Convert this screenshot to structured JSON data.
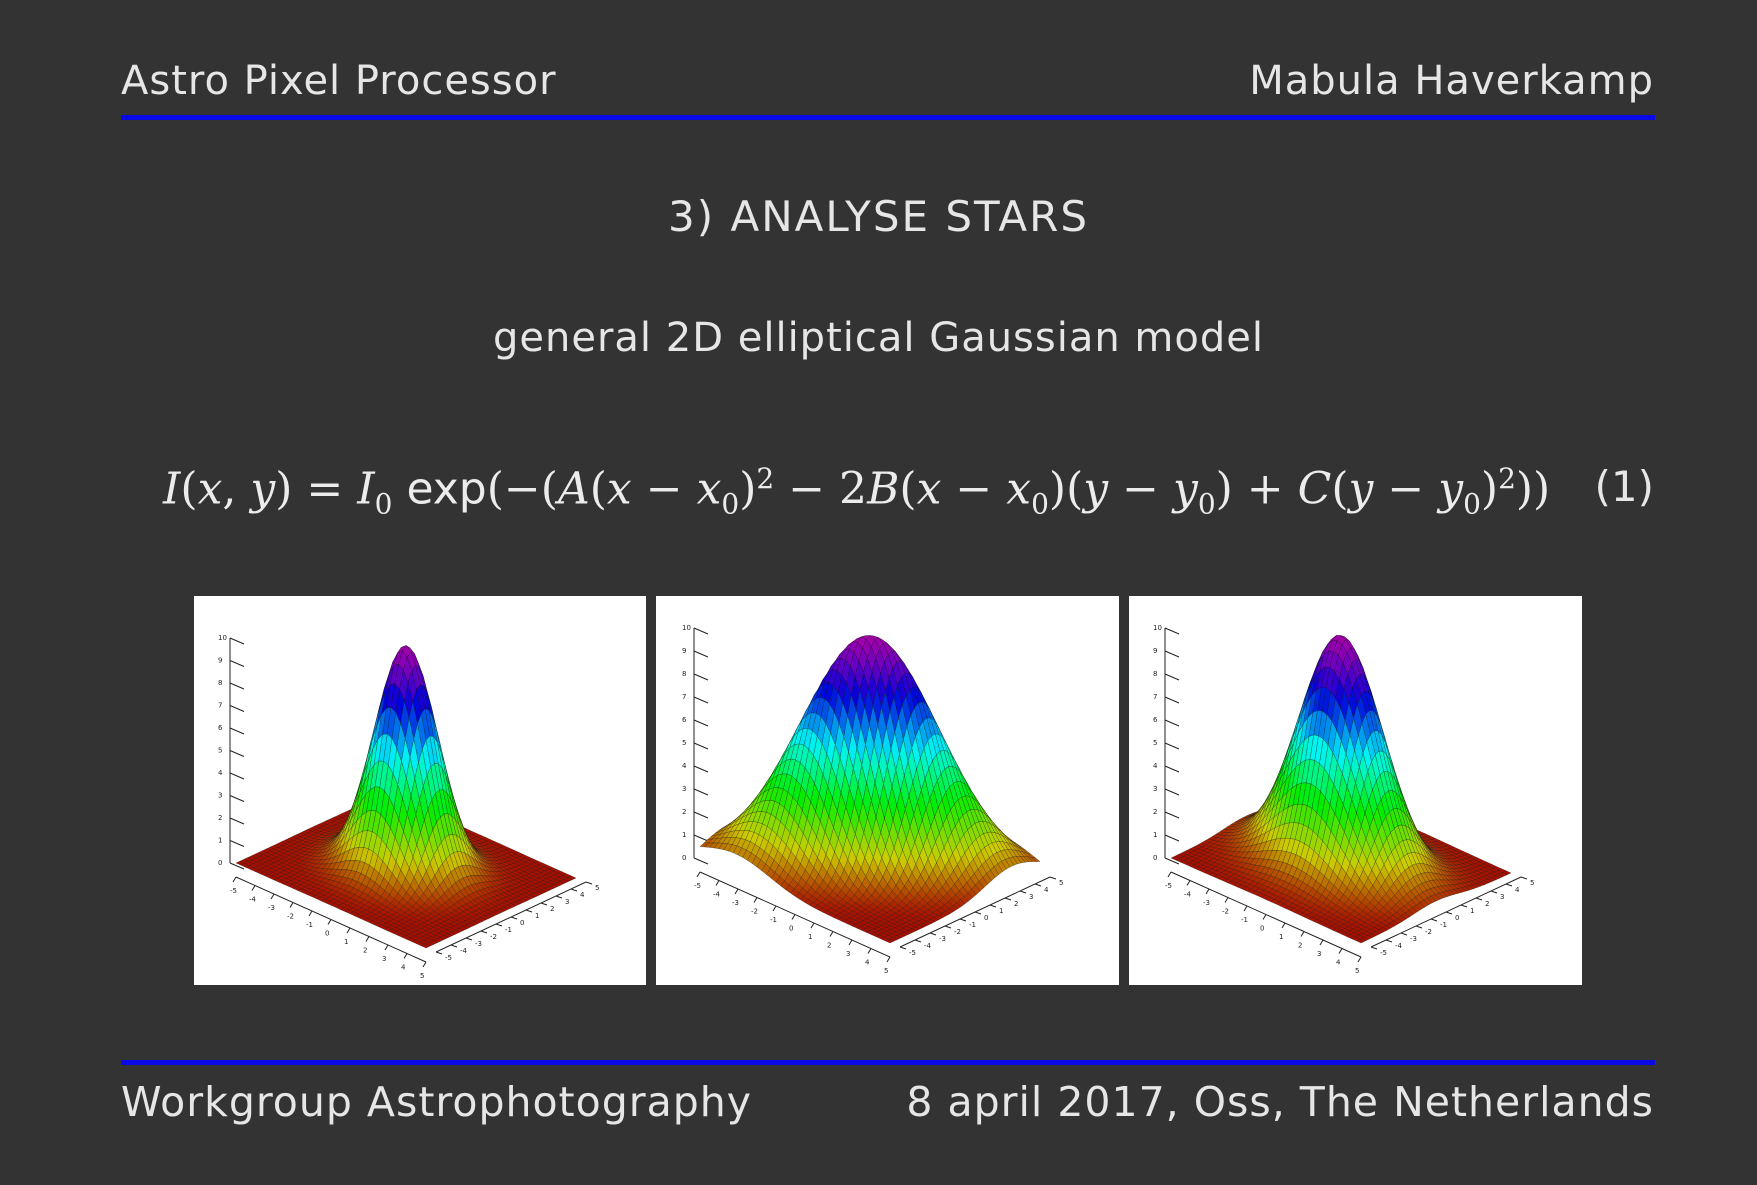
{
  "header": {
    "left": "Astro Pixel Processor",
    "right": "Mabula Haverkamp"
  },
  "slide": {
    "title": "3) ANALYSE STARS",
    "subtitle": "general 2D elliptical Gaussian model",
    "equation_number": "(1)"
  },
  "footer": {
    "left": "Workgroup Astrophotography",
    "right": "8 april 2017, Oss, The Netherlands"
  },
  "plots": {
    "z_ticks": [
      "10",
      "9",
      "8",
      "7",
      "6",
      "5",
      "4",
      "3",
      "2",
      "1",
      "0"
    ],
    "axis_ticks": [
      "-5",
      "-4",
      "-3",
      "-2",
      "-1",
      "0",
      "1",
      "2",
      "3",
      "4",
      "5"
    ]
  },
  "colors": {
    "background": "#333333",
    "rule": "#0a0ae6",
    "text": "#e6e6e6"
  }
}
